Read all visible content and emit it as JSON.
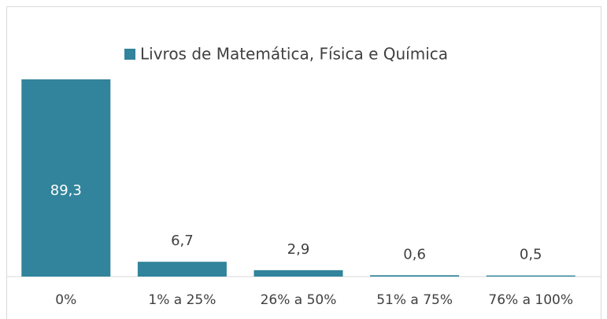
{
  "chart_data": {
    "type": "bar",
    "categories": [
      "0%",
      "1% a 25%",
      "26% a 50%",
      "51% a 75%",
      "76% a 100%"
    ],
    "series": [
      {
        "name": "Livros de Matemática, Física e Química",
        "color": "#31849b",
        "values": [
          89.3,
          6.7,
          2.9,
          0.6,
          0.5
        ],
        "value_labels": [
          "89,3",
          "6,7",
          "2,9",
          "0,6",
          "0,5"
        ]
      }
    ]
  }
}
